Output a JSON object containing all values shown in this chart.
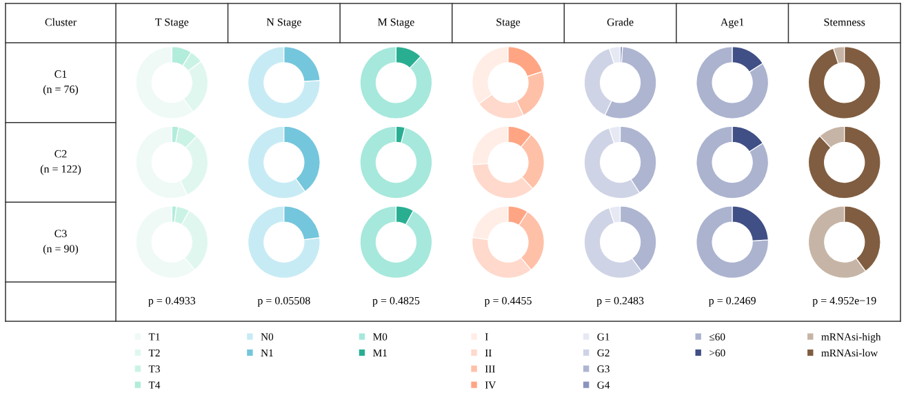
{
  "chart_data": [
    {
      "type": "other",
      "title": "Cluster",
      "annotations": [
        "C1",
        "(n = 76)",
        "C2",
        "(n = 122)",
        "C3",
        "(n = 90)"
      ]
    },
    {
      "type": "donut",
      "title": "T Stage",
      "categories": [
        "T1",
        "T2",
        "T3",
        "T4"
      ],
      "colors": [
        "#effaf6",
        "#e0f7f0",
        "#caf3e6",
        "#b2ecdb"
      ],
      "series": [
        {
          "values": [
            60,
            25,
            6,
            9
          ]
        },
        {
          "values": [
            57,
            31,
            9,
            3
          ]
        },
        {
          "values": [
            61,
            31,
            6,
            2
          ]
        }
      ],
      "annotations": [
        "p = 0.4933"
      ],
      "legend": "bottom"
    },
    {
      "type": "donut",
      "title": "N Stage",
      "categories": [
        "N0",
        "N1"
      ],
      "colors": [
        "#c7ebf4",
        "#74c6dc"
      ],
      "series": [
        {
          "values": [
            76,
            24
          ]
        },
        {
          "values": [
            60,
            40
          ]
        },
        {
          "values": [
            77,
            23
          ]
        }
      ],
      "annotations": [
        "p = 0.05508"
      ],
      "legend": "bottom"
    },
    {
      "type": "donut",
      "title": "M Stage",
      "categories": [
        "M0",
        "M1"
      ],
      "colors": [
        "#a6e8dc",
        "#2aae92"
      ],
      "series": [
        {
          "values": [
            88,
            12
          ]
        },
        {
          "values": [
            96,
            4
          ]
        },
        {
          "values": [
            92,
            8
          ]
        }
      ],
      "annotations": [
        "p = 0.4825"
      ],
      "legend": "bottom"
    },
    {
      "type": "donut",
      "title": "Stage",
      "categories": [
        "I",
        "II",
        "III",
        "IV"
      ],
      "colors": [
        "#ffede6",
        "#ffd9cc",
        "#ffc0a8",
        "#ffa584"
      ],
      "series": [
        {
          "values": [
            35,
            22,
            23,
            20
          ]
        },
        {
          "values": [
            26,
            36,
            27,
            11
          ]
        },
        {
          "values": [
            23,
            38,
            30,
            9
          ]
        }
      ],
      "annotations": [
        "p = 0.4455"
      ],
      "legend": "bottom"
    },
    {
      "type": "donut",
      "title": "Grade",
      "categories": [
        "G1",
        "G2",
        "G3",
        "G4"
      ],
      "colors": [
        "#e6e9f4",
        "#cfd3e6",
        "#aeb5d1",
        "#8a93bd"
      ],
      "series": [
        {
          "values": [
            5,
            38,
            56,
            1
          ]
        },
        {
          "values": [
            5,
            54,
            41,
            0
          ]
        },
        {
          "values": [
            5,
            55,
            40,
            0
          ]
        }
      ],
      "annotations": [
        "p = 0.2483"
      ],
      "legend": "bottom"
    },
    {
      "type": "donut",
      "title": "Age1",
      "categories": [
        "≤60",
        ">60"
      ],
      "colors": [
        "#abb3cf",
        "#404f85"
      ],
      "series": [
        {
          "values": [
            84,
            16
          ]
        },
        {
          "values": [
            84,
            16
          ]
        },
        {
          "values": [
            76,
            24
          ]
        }
      ],
      "annotations": [
        "p = 0.2469"
      ],
      "legend": "bottom"
    },
    {
      "type": "donut",
      "title": "Stemness",
      "categories": [
        "mRNAsi-high",
        "mRNAsi-low"
      ],
      "colors": [
        "#c6b5a6",
        "#805d40"
      ],
      "series": [
        {
          "values": [
            5,
            95
          ]
        },
        {
          "values": [
            12,
            88
          ]
        },
        {
          "values": [
            60,
            40
          ]
        }
      ],
      "annotations": [
        "p = 4.952e−19"
      ],
      "legend": "bottom"
    }
  ]
}
